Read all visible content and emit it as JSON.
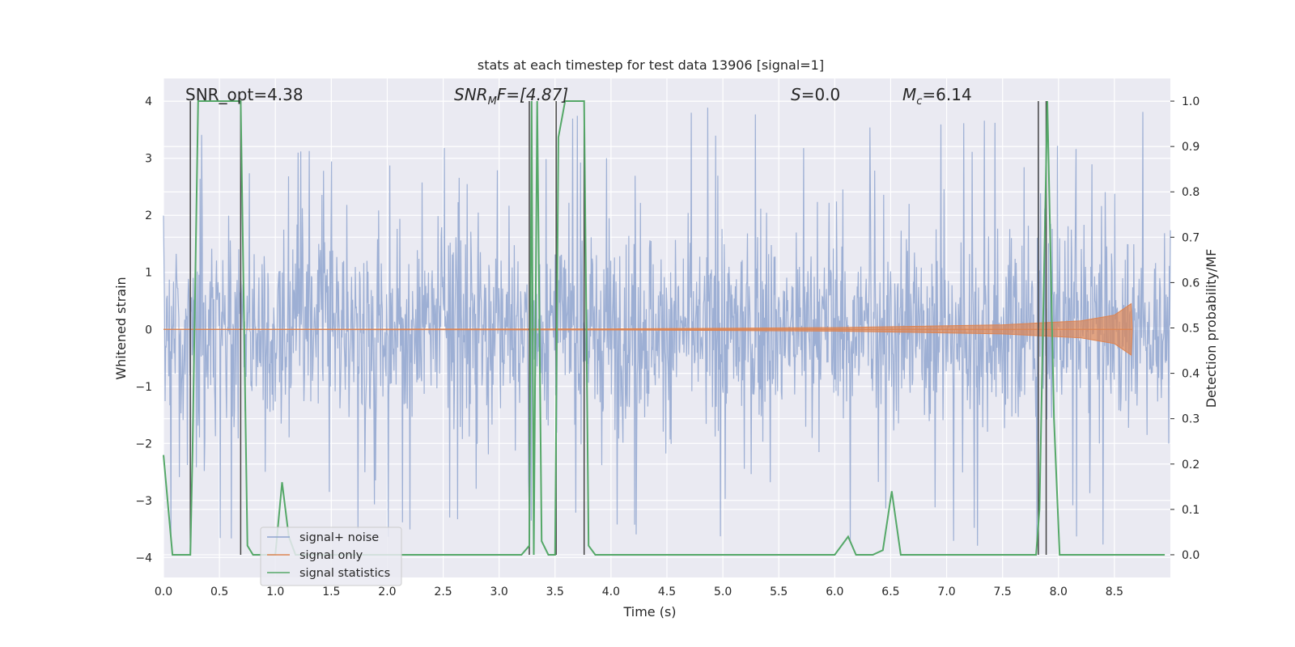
{
  "chart_data": {
    "type": "line",
    "title": "stats at each timestep for test data 13906 [signal=1]",
    "xlabel": "Time (s)",
    "ylabel_left": "Whitened strain",
    "ylabel_right": "Detection probability/MF",
    "xlim": [
      0,
      9
    ],
    "ylim_left": [
      -4.35,
      4.4
    ],
    "ylim_right": [
      -0.05,
      1.05
    ],
    "x_ticks": [
      "0.0",
      "0.5",
      "1.0",
      "1.5",
      "2.0",
      "2.5",
      "3.0",
      "3.5",
      "4.0",
      "4.5",
      "5.0",
      "5.5",
      "6.0",
      "6.5",
      "7.0",
      "7.5",
      "8.0",
      "8.5"
    ],
    "y_left_ticks": [
      "4",
      "3",
      "2",
      "1",
      "0",
      "−1",
      "−2",
      "−3",
      "−4"
    ],
    "y_right_ticks": [
      "1.0",
      "0.9",
      "0.8",
      "0.7",
      "0.6",
      "0.5",
      "0.4",
      "0.3",
      "0.2",
      "0.1",
      "0.0"
    ],
    "grid": true,
    "legend_position": "lower-left",
    "annotations": {
      "snr_opt": "SNR_opt=4.38",
      "snr_mf_main": "SNR",
      "snr_mf_sub": "M",
      "snr_mf_rest": "F=[4.87]",
      "s_main": "S",
      "s_rest": "=0.0",
      "mc_main": "M",
      "mc_sub": "c",
      "mc_rest": "=6.14"
    },
    "series": [
      {
        "name": "signal+ noise",
        "color": "#8fa4cf",
        "description_values": "whitened noisy strain, band roughly ±1.6 with spikes to about ±3.9",
        "noise_band": [
          -1.6,
          1.6
        ],
        "spike_range": [
          -3.9,
          3.9
        ]
      },
      {
        "name": "signal only",
        "color": "#dd8452",
        "envelope": [
          {
            "x": 0.0,
            "amp": 0.0
          },
          {
            "x": 4.0,
            "amp": 0.01
          },
          {
            "x": 6.0,
            "amp": 0.03
          },
          {
            "x": 7.5,
            "amp": 0.08
          },
          {
            "x": 8.2,
            "amp": 0.15
          },
          {
            "x": 8.5,
            "amp": 0.25
          },
          {
            "x": 8.65,
            "amp": 0.45
          },
          {
            "x": 8.66,
            "amp": 0.0
          }
        ]
      },
      {
        "name": "signal statistics",
        "color": "#55a868",
        "x": [
          0.0,
          0.08,
          0.24,
          0.26,
          0.31,
          0.35,
          0.4,
          0.5,
          0.6,
          0.66,
          0.69,
          0.75,
          0.8,
          1.0,
          1.06,
          1.12,
          1.18,
          1.4,
          2.0,
          2.5,
          3.0,
          3.2,
          3.27,
          3.29,
          3.31,
          3.34,
          3.38,
          3.44,
          3.5,
          3.53,
          3.59,
          3.65,
          3.72,
          3.76,
          3.8,
          3.86,
          4.0,
          5.0,
          6.0,
          6.12,
          6.19,
          6.26,
          6.34,
          6.43,
          6.51,
          6.59,
          7.0,
          7.5,
          7.8,
          7.83,
          7.9,
          7.96,
          8.01,
          8.08,
          8.5,
          8.85,
          8.95
        ],
        "y": [
          0.22,
          0.0,
          0.0,
          0.23,
          1.0,
          1.0,
          1.0,
          1.0,
          1.0,
          1.0,
          1.0,
          0.02,
          0.0,
          0.0,
          0.16,
          0.04,
          0.0,
          0.0,
          0.0,
          0.0,
          0.0,
          0.0,
          0.02,
          1.0,
          0.0,
          1.0,
          0.03,
          0.0,
          0.0,
          0.92,
          1.0,
          1.0,
          1.0,
          1.0,
          0.02,
          0.0,
          0.0,
          0.0,
          0.0,
          0.04,
          0.0,
          0.0,
          0.0,
          0.01,
          0.14,
          0.0,
          0.0,
          0.0,
          0.0,
          0.1,
          1.0,
          0.3,
          0.0,
          0.0,
          0.0,
          0.0,
          0.0
        ]
      },
      {
        "name": "detection markers",
        "color": "#444444",
        "x": [
          0.24,
          0.69,
          3.27,
          3.51,
          3.76,
          7.82,
          7.89
        ]
      }
    ]
  },
  "legend": {
    "items": [
      {
        "label": "signal+ noise",
        "color": "#8fa4cf"
      },
      {
        "label": "signal only",
        "color": "#dd8452"
      },
      {
        "label": "signal statistics",
        "color": "#55a868"
      }
    ]
  },
  "colors": {
    "plot_background": "#eaeaf2",
    "grid": "#ffffff",
    "text": "#262626"
  }
}
